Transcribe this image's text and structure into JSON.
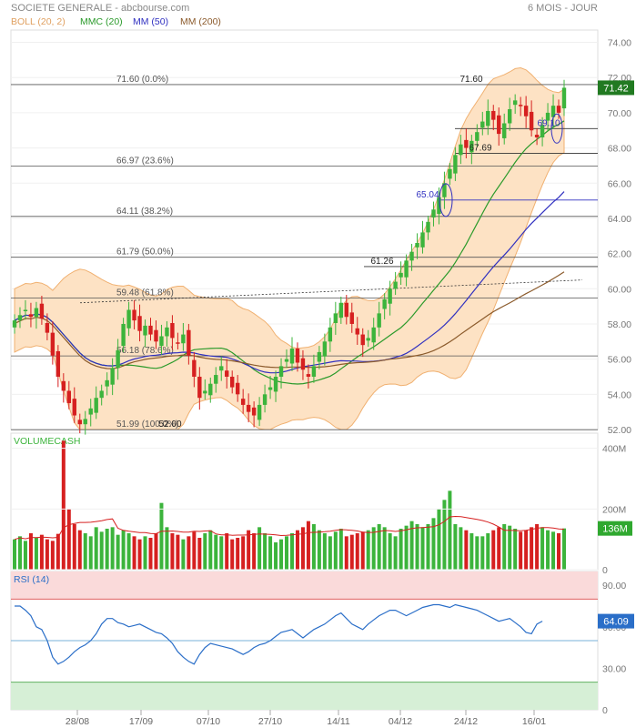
{
  "header": {
    "title": "SOCIETE GENERALE - abcbourse.com",
    "period": "6 MOIS - JOUR"
  },
  "legend": [
    {
      "label": "BOLL (20, 2)",
      "color": "#e0a060"
    },
    {
      "label": "MMC (20)",
      "color": "#2a9a2a"
    },
    {
      "label": "MM (50)",
      "color": "#3030c0"
    },
    {
      "label": "MM (200)",
      "color": "#8b5a2b"
    }
  ],
  "colors": {
    "up": "#3cb43c",
    "down": "#d62020",
    "boll_fill": "#fde2c4",
    "boll_line": "#f0b070",
    "mmc": "#2a9a2a",
    "mm50": "#3030c0",
    "mm200": "#8b5a2b",
    "rsi_line": "#2a6ec8",
    "rsi_upper_fill": "#fadada",
    "rsi_lower_fill": "#d6efd6",
    "last_price_bg": "#217a21",
    "last_volume_bg": "#2fa82f",
    "last_rsi_bg": "#2a6ec8"
  },
  "price_panel": {
    "ylim": [
      52,
      74.7
    ],
    "ticks": [
      "74.00",
      "72.00",
      "70.00",
      "68.00",
      "66.00",
      "64.00",
      "62.00",
      "60.00",
      "58.00",
      "56.00",
      "54.00",
      "52.00"
    ],
    "last_price": "71.42",
    "fib_levels": [
      {
        "price": 71.6,
        "label": "71.60",
        "pct": "(0.0%)"
      },
      {
        "price": 66.97,
        "label": "66.97",
        "pct": "(23.6%)"
      },
      {
        "price": 64.11,
        "label": "64.11",
        "pct": "(38.2%)"
      },
      {
        "price": 61.79,
        "label": "61.79",
        "pct": "(50.0%)"
      },
      {
        "price": 59.48,
        "label": "59.48",
        "pct": "(61.8%)"
      },
      {
        "price": 56.18,
        "label": "56.18",
        "pct": "(78.6%)"
      },
      {
        "price": 51.99,
        "label": "51.99",
        "pct": "(100.0%)"
      }
    ],
    "annotations": [
      {
        "label": "71.60",
        "price": 71.6
      },
      {
        "label": "69.10",
        "price": 69.1
      },
      {
        "label": "67.69",
        "price": 67.69
      },
      {
        "label": "65.04",
        "price": 65.04
      },
      {
        "label": "61.26",
        "price": 61.26
      },
      {
        "label": "52.00",
        "price": 52.0
      }
    ]
  },
  "volume_panel": {
    "title": "VOLUMECASH",
    "ylim": [
      0,
      450
    ],
    "ticks": [
      "400M",
      "200M",
      "0"
    ],
    "last_volume": "136M"
  },
  "rsi_panel": {
    "title": "RSI (14)",
    "ylim": [
      0,
      100
    ],
    "ticks": [
      "90.00",
      "60.00",
      "30.00",
      "0"
    ],
    "last_rsi": "64.09"
  },
  "x_axis": {
    "labels": [
      "28/08",
      "17/09",
      "07/10",
      "27/10",
      "14/11",
      "04/12",
      "24/12",
      "16/01"
    ]
  },
  "chart_data": {
    "type": "candlestick",
    "title": "SOCIETE GENERALE - abcbourse.com",
    "period": "6 MOIS - JOUR",
    "x_labels": [
      "28/08",
      "17/09",
      "07/10",
      "27/10",
      "14/11",
      "04/12",
      "24/12",
      "16/01"
    ],
    "price_close_anchors": [
      58.2,
      58.5,
      58.8,
      58.4,
      58.9,
      58.3,
      57.5,
      56.2,
      55.0,
      54.2,
      53.5,
      52.8,
      52.3,
      52.6,
      53.2,
      53.8,
      54.2,
      54.8,
      55.5,
      56.5,
      58.0,
      58.8,
      58.2,
      57.6,
      57.9,
      57.4,
      57.0,
      57.3,
      57.8,
      57.2,
      56.9,
      57.4,
      56.2,
      55.0,
      53.8,
      54.2,
      54.6,
      55.1,
      55.6,
      55.0,
      54.4,
      54.0,
      53.4,
      53.0,
      52.8,
      53.4,
      54.0,
      54.4,
      55.0,
      55.6,
      56.0,
      56.6,
      55.8,
      55.4,
      55.0,
      55.6,
      56.4,
      57.0,
      57.8,
      58.6,
      59.2,
      58.4,
      58.0,
      57.4,
      56.8,
      57.2,
      57.8,
      58.6,
      59.4,
      60.0,
      60.4,
      60.9,
      61.6,
      62.1,
      62.6,
      63.2,
      63.8,
      64.5,
      65.2,
      66.0,
      66.8,
      67.6,
      68.2,
      68.0,
      68.4,
      68.9,
      69.5,
      70.1,
      69.6,
      68.8,
      69.4,
      70.2,
      70.7,
      70.4,
      69.8,
      69.0,
      68.6,
      69.3,
      70.0,
      70.4,
      70.0,
      71.42
    ],
    "volume_anchors": [
      100,
      110,
      95,
      120,
      105,
      115,
      100,
      95,
      118,
      425,
      200,
      150,
      130,
      120,
      110,
      140,
      125,
      135,
      140,
      115,
      130,
      120,
      110,
      100,
      110,
      105,
      120,
      220,
      140,
      120,
      115,
      100,
      110,
      125,
      105,
      120,
      130,
      115,
      110,
      120,
      100,
      105,
      110,
      130,
      120,
      140,
      120,
      110,
      90,
      100,
      110,
      120,
      130,
      140,
      160,
      150,
      130,
      120,
      110,
      125,
      135,
      110,
      115,
      120,
      125,
      130,
      140,
      150,
      140,
      120,
      110,
      135,
      145,
      160,
      150,
      140,
      150,
      170,
      200,
      230,
      260,
      150,
      140,
      130,
      120,
      110,
      110,
      120,
      130,
      140,
      150,
      145,
      135,
      125,
      130,
      140,
      150,
      140,
      130,
      125,
      120,
      136
    ],
    "rsi_anchors": [
      75,
      75,
      72,
      68,
      60,
      58,
      50,
      38,
      33,
      35,
      38,
      42,
      45,
      47,
      50,
      55,
      62,
      66,
      66,
      63,
      62,
      60,
      61,
      62,
      60,
      58,
      56,
      55,
      52,
      48,
      42,
      38,
      35,
      33,
      40,
      45,
      48,
      47,
      46,
      45,
      44,
      42,
      40,
      42,
      45,
      47,
      48,
      50,
      53,
      56,
      57,
      58,
      55,
      52,
      55,
      58,
      60,
      62,
      65,
      68,
      70,
      66,
      62,
      60,
      58,
      62,
      65,
      68,
      70,
      72,
      72,
      70,
      68,
      70,
      72,
      74,
      75,
      76,
      76,
      75,
      74,
      76,
      75,
      74,
      73,
      72,
      70,
      68,
      66,
      64,
      65,
      66,
      63,
      60,
      56,
      55,
      62,
      64.09
    ]
  }
}
